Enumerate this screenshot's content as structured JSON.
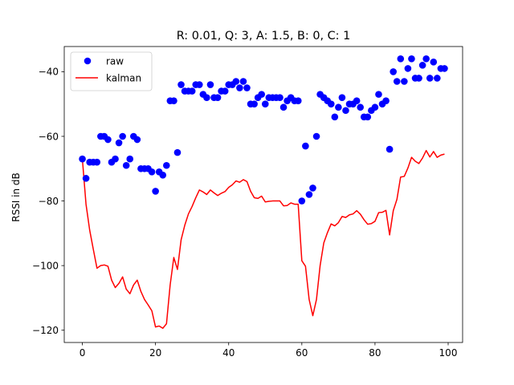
{
  "chart_data": {
    "type": "line",
    "title": "R: 0.01, Q: 3, A: 1.5, B: 0, C: 1",
    "xlabel": "",
    "ylabel": "RSSI in dB",
    "xlim": [
      -4.95,
      103.95
    ],
    "ylim": [
      -123.8,
      -32.2
    ],
    "xticks": [
      0,
      20,
      40,
      60,
      80,
      100
    ],
    "yticks": [
      -120,
      -100,
      -80,
      -60,
      -40
    ],
    "legend_position": "top-left",
    "grid": false,
    "series": [
      {
        "name": "raw",
        "style": "markers",
        "color": "#0000ff",
        "x": [
          0,
          1,
          2,
          3,
          4,
          5,
          6,
          7,
          8,
          9,
          10,
          11,
          12,
          13,
          14,
          15,
          16,
          17,
          18,
          19,
          20,
          21,
          22,
          23,
          24,
          25,
          26,
          27,
          28,
          29,
          30,
          31,
          32,
          33,
          34,
          35,
          36,
          37,
          38,
          39,
          40,
          41,
          42,
          43,
          44,
          45,
          46,
          47,
          48,
          49,
          50,
          51,
          52,
          53,
          54,
          55,
          56,
          57,
          58,
          59,
          60,
          61,
          62,
          63,
          64,
          65,
          66,
          67,
          68,
          69,
          70,
          71,
          72,
          73,
          74,
          75,
          76,
          77,
          78,
          79,
          80,
          81,
          82,
          83,
          84,
          85,
          86,
          87,
          88,
          89,
          90,
          91,
          92,
          93,
          94,
          95,
          96,
          97,
          98,
          99
        ],
        "y": [
          -67,
          -73,
          -68,
          -68,
          -68,
          -60,
          -60,
          -61,
          -68,
          -67,
          -62,
          -60,
          -69,
          -67,
          -60,
          -61,
          -70,
          -70,
          -70,
          -71,
          -77,
          -71,
          -72,
          -69,
          -49,
          -49,
          -65,
          -44,
          -46,
          -46,
          -46,
          -44,
          -44,
          -47,
          -48,
          -44,
          -48,
          -48,
          -46,
          -46,
          -44,
          -44,
          -43,
          -45,
          -43,
          -45,
          -50,
          -50,
          -48,
          -47,
          -50,
          -48,
          -48,
          -48,
          -48,
          -51,
          -49,
          -48,
          -49,
          -49,
          -80,
          -63,
          -78,
          -76,
          -60,
          -47,
          -48,
          -49,
          -50,
          -54,
          -51,
          -48,
          -52,
          -50,
          -50,
          -49,
          -51,
          -54,
          -54,
          -52,
          -51,
          -47,
          -50,
          -49,
          -64,
          -40,
          -43,
          -36,
          -43,
          -39,
          -36,
          -42,
          -42,
          -38,
          -36,
          -42,
          -37,
          -42,
          -39,
          -39
        ]
      },
      {
        "name": "kalman",
        "style": "line",
        "color": "#ff0000",
        "x": [
          0,
          1,
          2,
          3,
          4,
          5,
          6,
          7,
          8,
          9,
          10,
          11,
          12,
          13,
          14,
          15,
          16,
          17,
          18,
          19,
          20,
          21,
          22,
          23,
          24,
          25,
          26,
          27,
          28,
          29,
          30,
          31,
          32,
          33,
          34,
          35,
          36,
          37,
          38,
          39,
          40,
          41,
          42,
          43,
          44,
          45,
          46,
          47,
          48,
          49,
          50,
          51,
          52,
          53,
          54,
          55,
          56,
          57,
          58,
          59,
          60,
          61,
          62,
          63,
          64,
          65,
          66,
          67,
          68,
          69,
          70,
          71,
          72,
          73,
          74,
          75,
          76,
          77,
          78,
          79,
          80,
          81,
          82,
          83,
          84,
          85,
          86,
          87,
          88,
          89,
          90,
          91,
          92,
          93,
          94,
          95,
          96,
          97,
          98,
          99
        ],
        "y": [
          -67,
          -81,
          -89,
          -95,
          -100.8,
          -100,
          -99.8,
          -100.2,
          -104.5,
          -106.8,
          -105.5,
          -103.5,
          -107.3,
          -108.7,
          -106,
          -104.5,
          -108,
          -110.5,
          -112.2,
          -114,
          -119,
          -118.7,
          -119.4,
          -118,
          -106,
          -97.5,
          -101.2,
          -92,
          -87.5,
          -84,
          -81.7,
          -79,
          -76.6,
          -77.2,
          -78,
          -76.6,
          -77.5,
          -78.3,
          -77.6,
          -77.1,
          -75.8,
          -75,
          -73.8,
          -74.2,
          -73.4,
          -74,
          -77,
          -79,
          -79.2,
          -78.5,
          -80.3,
          -80.1,
          -80,
          -80,
          -80,
          -81.5,
          -81.4,
          -80.6,
          -81,
          -81,
          -98.5,
          -100.2,
          -110.5,
          -115.5,
          -110.5,
          -100,
          -93,
          -89.8,
          -87.1,
          -87.7,
          -86.7,
          -84.8,
          -85.1,
          -84.3,
          -84,
          -83,
          -84.1,
          -85.8,
          -87.2,
          -87,
          -86.3,
          -83.6,
          -83.5,
          -82.9,
          -90.5,
          -83,
          -79.5,
          -72.6,
          -72.4,
          -69.8,
          -66.5,
          -67.7,
          -68.4,
          -66.7,
          -64.4,
          -66.4,
          -64.7,
          -66.5,
          -65.8,
          -65.5
        ]
      }
    ]
  }
}
